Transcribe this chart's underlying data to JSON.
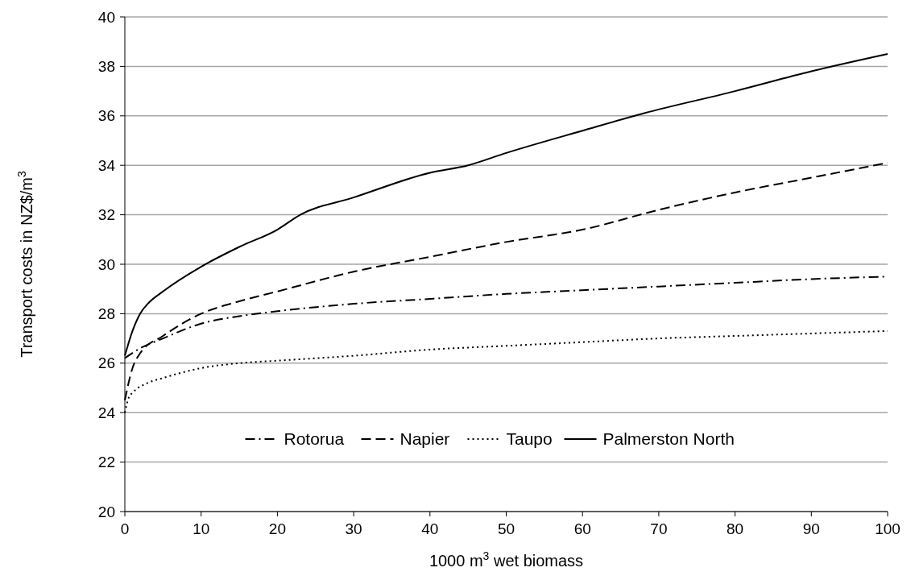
{
  "chart_data": {
    "type": "line",
    "xlabel": "1000 m$^{3}$ wet biomass",
    "ylabel": "Transport costs in NZ$/m$^{3}$",
    "xlim": [
      0,
      100
    ],
    "xticks": [
      0,
      10,
      20,
      30,
      40,
      50,
      60,
      70,
      80,
      90,
      100
    ],
    "ylim": [
      20,
      40
    ],
    "yticks": [
      20,
      22,
      24,
      26,
      28,
      30,
      32,
      34,
      36,
      38,
      40
    ],
    "grid": "y",
    "legend": "bottom",
    "series": [
      {
        "name": "Rotorua",
        "color": "#000000",
        "line_style": "dashdot",
        "x": [
          0,
          2,
          5,
          10,
          15,
          20,
          30,
          40,
          50,
          60,
          70,
          80,
          90,
          100
        ],
        "values": [
          26.2,
          26.6,
          27.0,
          27.6,
          27.9,
          28.1,
          28.4,
          28.6,
          28.8,
          28.95,
          29.1,
          29.25,
          29.4,
          29.5
        ]
      },
      {
        "name": "Napier",
        "color": "#000000",
        "line_style": "dashed",
        "x": [
          0,
          1,
          2,
          5,
          10,
          15,
          20,
          30,
          40,
          50,
          60,
          70,
          80,
          90,
          100
        ],
        "values": [
          24.5,
          25.8,
          26.4,
          27.1,
          28.0,
          28.5,
          28.9,
          29.7,
          30.3,
          30.9,
          31.4,
          32.2,
          32.9,
          33.5,
          34.1
        ]
      },
      {
        "name": "Taupo",
        "color": "#000000",
        "line_style": "dotted",
        "x": [
          0,
          0.5,
          1,
          3,
          5,
          10,
          15,
          20,
          30,
          40,
          50,
          60,
          70,
          80,
          90,
          100
        ],
        "values": [
          24.0,
          24.6,
          24.8,
          25.2,
          25.4,
          25.8,
          26.0,
          26.1,
          26.3,
          26.55,
          26.7,
          26.85,
          27.0,
          27.1,
          27.2,
          27.3
        ]
      },
      {
        "name": "Palmerston North",
        "color": "#000000",
        "line_style": "solid",
        "x": [
          0,
          1,
          2,
          3,
          5,
          10,
          15,
          20,
          23,
          30,
          40,
          45,
          50,
          60,
          68,
          80,
          90,
          100
        ],
        "values": [
          26.3,
          27.3,
          28.0,
          28.4,
          28.9,
          29.9,
          30.7,
          31.4,
          32.0,
          32.7,
          33.7,
          34.0,
          34.5,
          35.4,
          36.1,
          37.0,
          37.8,
          38.5
        ]
      }
    ]
  }
}
